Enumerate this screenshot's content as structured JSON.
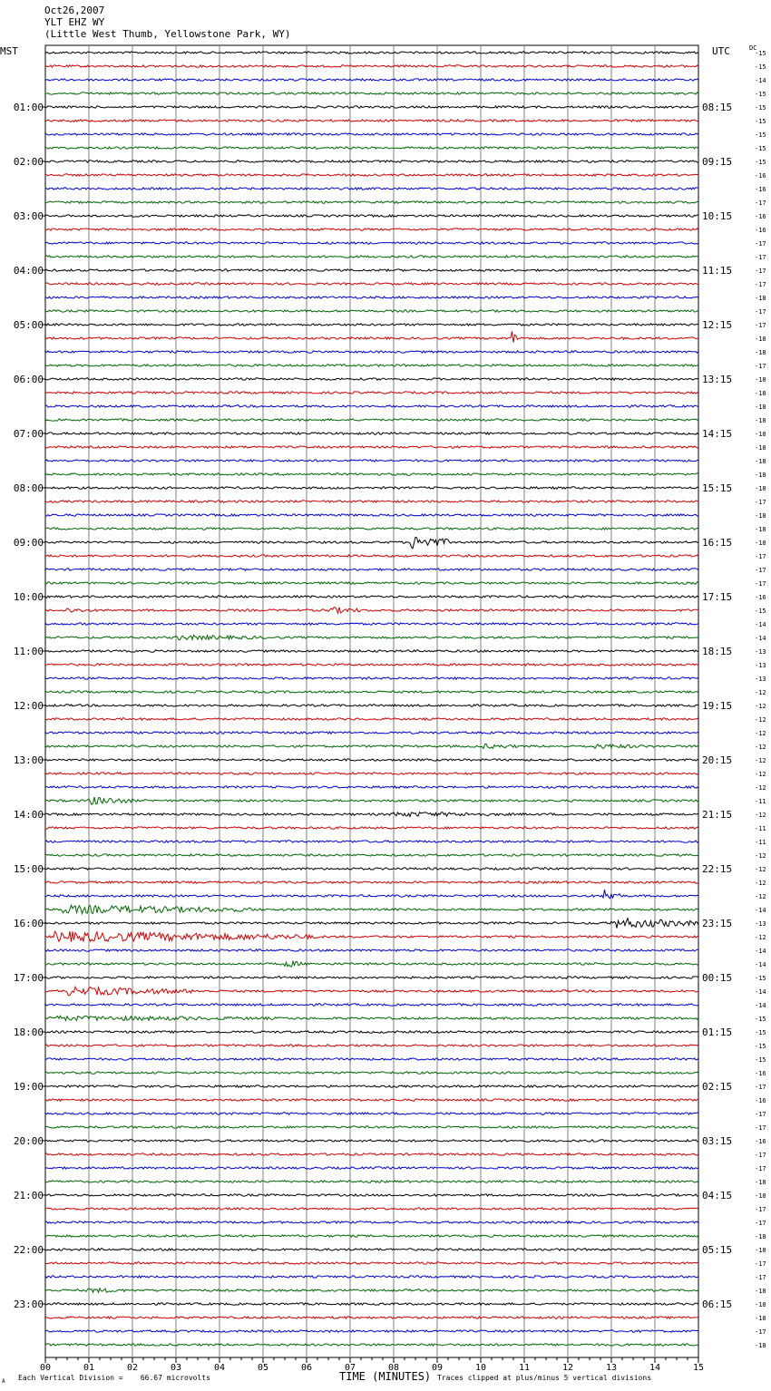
{
  "header": {
    "date": "Oct26,2007",
    "station": "YLT EHZ WY",
    "location": "(Little West Thumb, Yellowstone Park, WY)"
  },
  "left_axis_title": "MST",
  "right_axis_title": "UTC",
  "dc_label": "DC",
  "footer": {
    "scale": "Each Vertical Division =    66.67 microvolts",
    "clip_note": "Traces clipped at plus/minus 5 vertical divisions",
    "corner_mark": "A"
  },
  "chart_data": {
    "type": "helicorder",
    "xlabel": "TIME (MINUTES)",
    "x_ticks": [
      "00",
      "01",
      "02",
      "03",
      "04",
      "05",
      "06",
      "07",
      "08",
      "09",
      "10",
      "11",
      "12",
      "13",
      "14",
      "15"
    ],
    "xlim": [
      0,
      15
    ],
    "trace_colors": [
      "#000000",
      "#d00000",
      "#0000cc",
      "#006600"
    ],
    "grid_color": "#808080",
    "left_hour_labels": [
      "01:00",
      "02:00",
      "03:00",
      "04:00",
      "05:00",
      "06:00",
      "07:00",
      "08:00",
      "09:00",
      "10:00",
      "11:00",
      "12:00",
      "13:00",
      "14:00",
      "15:00",
      "16:00",
      "17:00",
      "18:00",
      "19:00",
      "20:00",
      "21:00",
      "22:00",
      "23:00"
    ],
    "right_hour_labels": [
      "08:15",
      "09:15",
      "10:15",
      "11:15",
      "12:15",
      "13:15",
      "14:15",
      "15:15",
      "16:15",
      "17:15",
      "18:15",
      "19:15",
      "20:15",
      "21:15",
      "22:15",
      "23:15",
      "00:15",
      "01:15",
      "02:15",
      "03:15",
      "04:15",
      "05:15",
      "06:15"
    ],
    "dc_offsets": [
      "-15",
      "-15",
      "-14",
      "-15",
      "-15",
      "-15",
      "-15",
      "-15",
      "-15",
      "-16",
      "-16",
      "-17",
      "-16",
      "-16",
      "-17",
      "-17",
      "-17",
      "-17",
      "-18",
      "-17",
      "-17",
      "-18",
      "-18",
      "-17",
      "-18",
      "-18",
      "-18",
      "-18",
      "-18",
      "-18",
      "-18",
      "-18",
      "-18",
      "-17",
      "-18",
      "-18",
      "-18",
      "-17",
      "-17",
      "-17",
      "-16",
      "-15",
      "-14",
      "-14",
      "-13",
      "-13",
      "-13",
      "-12",
      "-12",
      "-12",
      "-12",
      "-12",
      "-12",
      "-12",
      "-12",
      "-11",
      "-12",
      "-11",
      "-11",
      "-12",
      "-12",
      "-12",
      "-12",
      "-14",
      "-13",
      "-12",
      "-14",
      "-14",
      "-15",
      "-14",
      "-14",
      "-15",
      "-15",
      "-15",
      "-15",
      "-16",
      "-17",
      "-16",
      "-17",
      "-17",
      "-16",
      "-17",
      "-17",
      "-18",
      "-18",
      "-17",
      "-17",
      "-18",
      "-18",
      "-17",
      "-17",
      "-18",
      "-18",
      "-18",
      "-17",
      "-18"
    ],
    "events": [
      {
        "trace": 21,
        "start_min": 10.7,
        "duration_min": 0.15,
        "amplitude_div": 9,
        "color_index": 1
      },
      {
        "trace": 36,
        "start_min": 8.4,
        "duration_min": 0.9,
        "amplitude_div": 8,
        "color_index": 0
      },
      {
        "trace": 41,
        "start_min": 0.5,
        "duration_min": 0.6,
        "amplitude_div": 3,
        "color_index": 1
      },
      {
        "trace": 41,
        "start_min": 6.5,
        "duration_min": 0.8,
        "amplitude_div": 4,
        "color_index": 1
      },
      {
        "trace": 43,
        "start_min": 3.0,
        "duration_min": 2.5,
        "amplitude_div": 3,
        "color_index": 3
      },
      {
        "trace": 51,
        "start_min": 10.0,
        "duration_min": 1.0,
        "amplitude_div": 3,
        "color_index": 3
      },
      {
        "trace": 51,
        "start_min": 12.5,
        "duration_min": 1.5,
        "amplitude_div": 3,
        "color_index": 3
      },
      {
        "trace": 55,
        "start_min": 1.0,
        "duration_min": 1.0,
        "amplitude_div": 5,
        "color_index": 3
      },
      {
        "trace": 56,
        "start_min": 8.0,
        "duration_min": 3.0,
        "amplitude_div": 3,
        "color_index": 0
      },
      {
        "trace": 62,
        "start_min": 12.8,
        "duration_min": 0.4,
        "amplitude_div": 8,
        "color_index": 2
      },
      {
        "trace": 63,
        "start_min": 0.4,
        "duration_min": 4.5,
        "amplitude_div": 5,
        "color_index": 3
      },
      {
        "trace": 64,
        "start_min": 13.0,
        "duration_min": 2.0,
        "amplitude_div": 6,
        "color_index": 0
      },
      {
        "trace": 65,
        "start_min": 0.2,
        "duration_min": 6.0,
        "amplitude_div": 6,
        "color_index": 1
      },
      {
        "trace": 67,
        "start_min": 5.5,
        "duration_min": 0.5,
        "amplitude_div": 4,
        "color_index": 3
      },
      {
        "trace": 69,
        "start_min": 0.5,
        "duration_min": 3.0,
        "amplitude_div": 5,
        "color_index": 1
      },
      {
        "trace": 71,
        "start_min": 0.0,
        "duration_min": 6.0,
        "amplitude_div": 3,
        "color_index": 3
      },
      {
        "trace": 91,
        "start_min": 1.0,
        "duration_min": 1.0,
        "amplitude_div": 3,
        "color_index": 3
      }
    ]
  }
}
